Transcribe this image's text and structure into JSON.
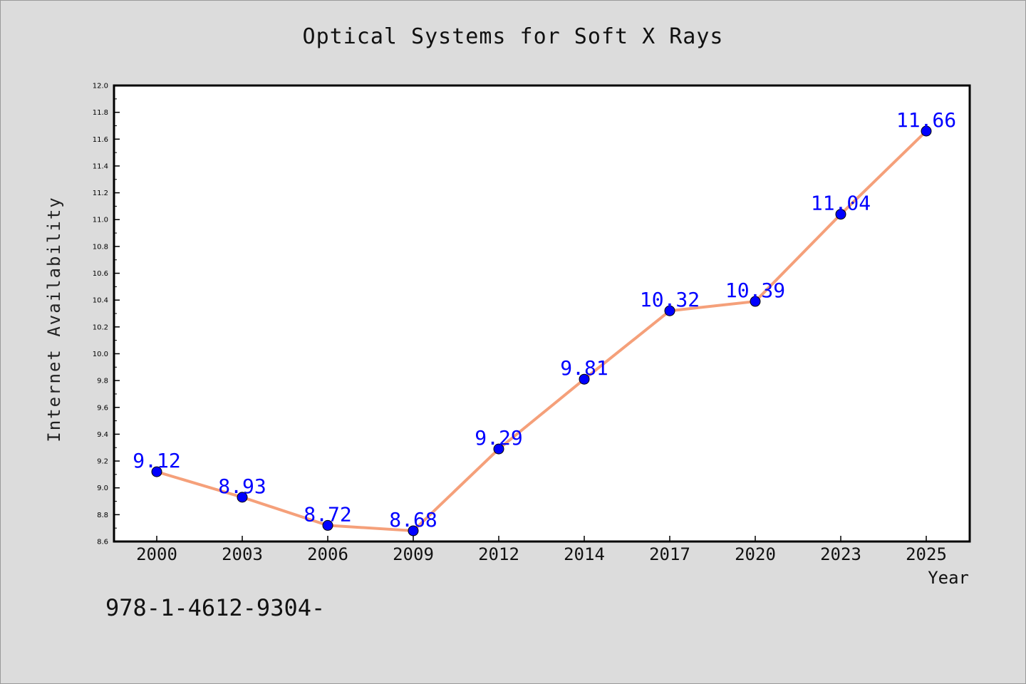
{
  "chart_data": {
    "type": "line",
    "title": "Optical Systems for Soft X Rays",
    "xlabel": "Year",
    "ylabel": "Internet Availability",
    "categories": [
      "2000",
      "2003",
      "2006",
      "2009",
      "2012",
      "2014",
      "2017",
      "2020",
      "2023",
      "2025"
    ],
    "series": [
      {
        "values": [
          9.12,
          8.93,
          8.72,
          8.68,
          9.29,
          9.81,
          10.32,
          10.39,
          11.04,
          11.66
        ],
        "line_color": "#f5a07a",
        "marker_color": "#0000ff"
      }
    ],
    "data_labels": [
      "9.12",
      "8.93",
      "8.72",
      "8.68",
      "9.29",
      "9.81",
      "10.32",
      "10.39",
      "11.04",
      "11.66"
    ],
    "ylim": [
      8.6,
      12.0
    ],
    "yticks": [
      "8.6",
      "8.8",
      "9.0",
      "9.2",
      "9.4",
      "9.6",
      "9.8",
      "10.0",
      "10.2",
      "10.4",
      "10.6",
      "10.8",
      "11.0",
      "11.2",
      "11.4",
      "11.6",
      "11.8",
      "12.0"
    ],
    "grid": false,
    "legend": "none"
  },
  "footer": {
    "code": "978-1-4612-9304-"
  }
}
